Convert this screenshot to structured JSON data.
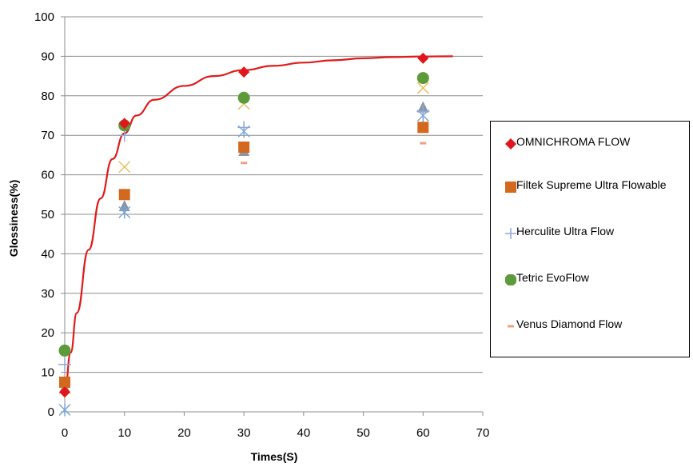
{
  "chart_data": {
    "type": "scatter",
    "title": "",
    "xlabel": "Times(S)",
    "ylabel": "Glossiness(%)",
    "xlim": [
      0,
      70
    ],
    "ylim": [
      0,
      100
    ],
    "xticks": [
      0,
      10,
      20,
      30,
      40,
      50,
      60,
      70
    ],
    "yticks": [
      0,
      10,
      20,
      30,
      40,
      50,
      60,
      70,
      80,
      90,
      100
    ],
    "grid": "horizontal",
    "legend_position": "right",
    "series": [
      {
        "name": "OMNICHROMA FLOW",
        "marker": "diamond",
        "color": "#e0161c",
        "points": [
          [
            0,
            5
          ],
          [
            10,
            73
          ],
          [
            30,
            86
          ],
          [
            60,
            89.5
          ]
        ]
      },
      {
        "name": "Filtek Supreme Ultra Flowable",
        "marker": "square",
        "color": "#d2691e",
        "points": [
          [
            0,
            7.5
          ],
          [
            10,
            55
          ],
          [
            30,
            67
          ],
          [
            60,
            72
          ]
        ]
      },
      {
        "name": "Herculite Ultra Flow",
        "marker": "plus",
        "color": "#8fa8d8",
        "points": [
          [
            0,
            12
          ],
          [
            10,
            70
          ],
          [
            30,
            72
          ],
          [
            60,
            76
          ]
        ]
      },
      {
        "name": "Tetric EvoFlow",
        "marker": "circle",
        "color": "#5c9a3a",
        "points": [
          [
            0,
            15.5
          ],
          [
            10,
            72.5
          ],
          [
            30,
            79.5
          ],
          [
            60,
            84.5
          ]
        ]
      },
      {
        "name": "Venus Diamond Flow",
        "marker": "dash",
        "color": "#f0a080",
        "points": [
          [
            0,
            8
          ],
          [
            10,
            56
          ],
          [
            30,
            63
          ],
          [
            60,
            68
          ]
        ]
      },
      {
        "name": "",
        "marker": "x",
        "color": "#e8c060",
        "points": [
          [
            0,
            6
          ],
          [
            10,
            62
          ],
          [
            30,
            78
          ],
          [
            60,
            82
          ]
        ]
      },
      {
        "name": "",
        "marker": "star",
        "color": "#7aa6d6",
        "points": [
          [
            0,
            0.5
          ],
          [
            10,
            50.5
          ],
          [
            30,
            71
          ],
          [
            60,
            75
          ]
        ]
      },
      {
        "name": "",
        "marker": "triangle",
        "color": "#8a96a8",
        "points": [
          [
            0,
            6
          ],
          [
            10,
            52
          ],
          [
            30,
            66
          ],
          [
            60,
            77
          ]
        ]
      }
    ],
    "trendline": {
      "color": "#e01b1b",
      "points": [
        [
          0,
          5
        ],
        [
          1,
          15
        ],
        [
          2,
          25
        ],
        [
          4,
          41
        ],
        [
          6,
          54
        ],
        [
          8,
          64
        ],
        [
          10,
          70.5
        ],
        [
          12,
          75
        ],
        [
          15,
          79
        ],
        [
          20,
          82.5
        ],
        [
          25,
          85
        ],
        [
          30,
          86.5
        ],
        [
          35,
          87.6
        ],
        [
          40,
          88.4
        ],
        [
          45,
          89
        ],
        [
          50,
          89.5
        ],
        [
          55,
          89.8
        ],
        [
          60,
          89.95
        ],
        [
          65,
          90
        ]
      ]
    }
  },
  "legend": [
    {
      "label": "OMNICHROMA FLOW",
      "marker": "diamond",
      "color": "#e0161c"
    },
    {
      "label": "Filtek Supreme Ultra Flowable",
      "marker": "square",
      "color": "#d2691e"
    },
    {
      "label": "Herculite Ultra Flow",
      "marker": "plus",
      "color": "#8fa8d8"
    },
    {
      "label": "Tetric EvoFlow",
      "marker": "circle",
      "color": "#5c9a3a"
    },
    {
      "label": "Venus Diamond Flow",
      "marker": "dash",
      "color": "#f0a080"
    }
  ]
}
